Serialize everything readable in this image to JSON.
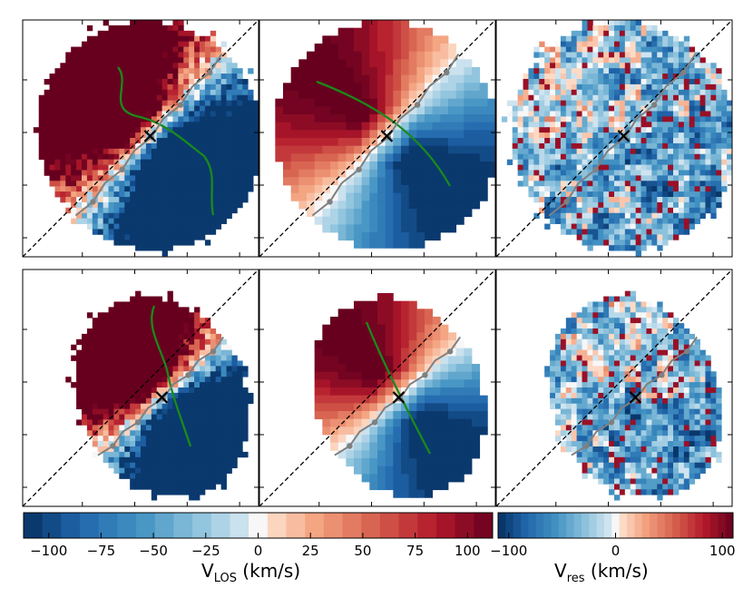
{
  "chart_data": {
    "type": "heatmap",
    "title": "",
    "description_panels": "2x3 grid of velocity maps (rows: two galaxies; columns: observed V_LOS, model V_LOS, residual V_res)",
    "panels": [
      {
        "id": "top-observed",
        "row": 1,
        "column": 1,
        "quantity": "V_LOS observed",
        "has_contour": true
      },
      {
        "id": "top-model",
        "row": 1,
        "column": 2,
        "quantity": "V_LOS model",
        "has_contour": true
      },
      {
        "id": "top-residual",
        "row": 1,
        "column": 3,
        "quantity": "V_res",
        "has_contour": false
      },
      {
        "id": "bottom-observed",
        "row": 2,
        "column": 1,
        "quantity": "V_LOS observed",
        "has_contour": true
      },
      {
        "id": "bottom-model",
        "row": 2,
        "column": 2,
        "quantity": "V_LOS model",
        "has_contour": true
      },
      {
        "id": "bottom-residual",
        "row": 2,
        "column": 3,
        "quantity": "V_res",
        "has_contour": false
      }
    ],
    "colorbars": [
      {
        "name": "vlos",
        "label_main": "V",
        "label_sub": "LOS",
        "label_unit": " (km/s)",
        "range": [
          -112,
          112
        ],
        "ticks": [
          -100,
          -75,
          -50,
          -25,
          0,
          25,
          50,
          75,
          100
        ],
        "tick_labels": [
          "−100",
          "−75",
          "−50",
          "−25",
          "0",
          "25",
          "50",
          "75",
          "100"
        ],
        "n_levels": 25,
        "colormap": "RdBu_r"
      },
      {
        "name": "vres",
        "label_main": "V",
        "label_sub": "res",
        "label_unit": " (km/s)",
        "range": [
          -110,
          110
        ],
        "ticks": [
          -100,
          0,
          100
        ],
        "tick_labels": [
          "−100",
          "0",
          "100"
        ],
        "n_levels": 31,
        "colormap": "RdBu_r"
      }
    ],
    "overlays": {
      "major_axis": "black dashed diagonal line",
      "center_marker": "black ×",
      "kinematic_trace": "grey line with grey dots",
      "zero_velocity_contour": "green"
    }
  },
  "colors": {
    "darkblue": "#053061",
    "lightblue": "#d1e5f0",
    "white": "#f7f7f7",
    "lightred": "#fddbc7",
    "darkred": "#67001f",
    "contour": "#1a8a1a",
    "trace": "#808080"
  }
}
